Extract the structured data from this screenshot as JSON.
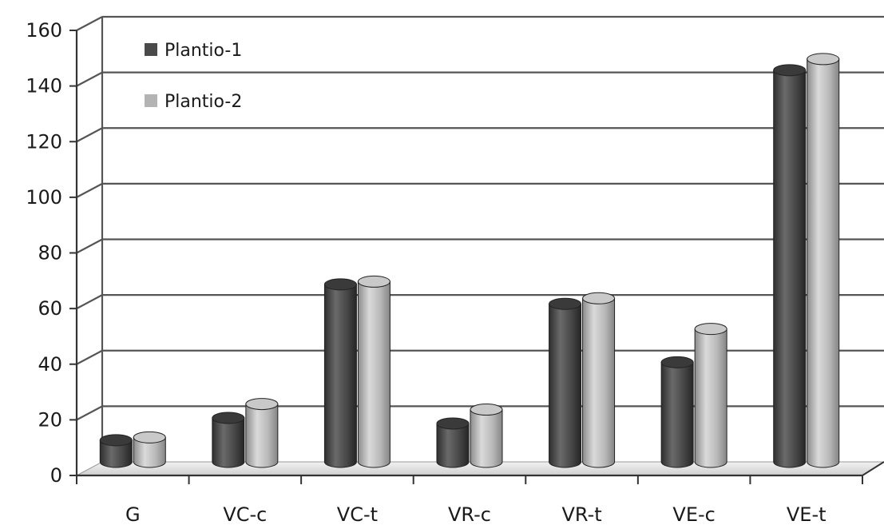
{
  "chart_data": {
    "type": "bar",
    "style": "3d-cylinder",
    "categories": [
      "G",
      "VC-c",
      "VC-t",
      "VR-c",
      "VR-t",
      "VE-c",
      "VE-t"
    ],
    "series": [
      {
        "name": "Plantio-1",
        "color": "#4a4a4a",
        "values": [
          10,
          18,
          66,
          16,
          59,
          38,
          143
        ]
      },
      {
        "name": "Plantio-2",
        "color": "#b3b3b3",
        "values": [
          11,
          23,
          67,
          21,
          61,
          50,
          147
        ]
      }
    ],
    "title": "",
    "xlabel": "",
    "ylabel": "",
    "ylim": [
      0,
      160
    ],
    "yticks": [
      0,
      20,
      40,
      60,
      80,
      100,
      120,
      140,
      160
    ],
    "grid": true,
    "legend_position": "top-left"
  }
}
